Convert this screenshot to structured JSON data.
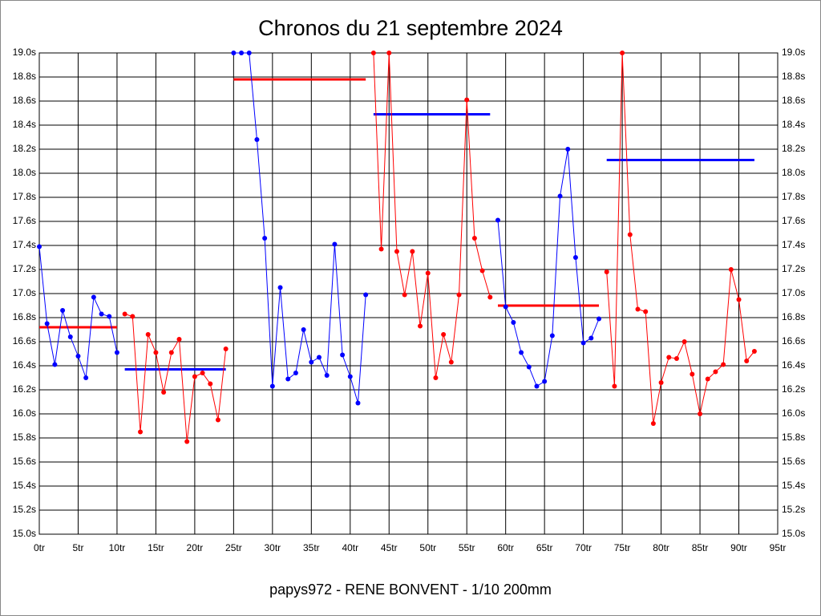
{
  "chart_data": {
    "type": "line",
    "title": "Chronos du 21 septembre 2024",
    "xlabel": "papys972 - RENE BONVENT - 1/10 200mm",
    "xlim": [
      0,
      95
    ],
    "xticks": [
      {
        "value": 0,
        "label": "0tr"
      },
      {
        "value": 5,
        "label": "5tr"
      },
      {
        "value": 10,
        "label": "10tr"
      },
      {
        "value": 15,
        "label": "15tr"
      },
      {
        "value": 20,
        "label": "20tr"
      },
      {
        "value": 25,
        "label": "25tr"
      },
      {
        "value": 30,
        "label": "30tr"
      },
      {
        "value": 35,
        "label": "35tr"
      },
      {
        "value": 40,
        "label": "40tr"
      },
      {
        "value": 45,
        "label": "45tr"
      },
      {
        "value": 50,
        "label": "50tr"
      },
      {
        "value": 55,
        "label": "55tr"
      },
      {
        "value": 60,
        "label": "60tr"
      },
      {
        "value": 65,
        "label": "65tr"
      },
      {
        "value": 70,
        "label": "70tr"
      },
      {
        "value": 75,
        "label": "75tr"
      },
      {
        "value": 80,
        "label": "80tr"
      },
      {
        "value": 85,
        "label": "85tr"
      },
      {
        "value": 90,
        "label": "90tr"
      },
      {
        "value": 95,
        "label": "95tr"
      }
    ],
    "ylim": [
      15,
      19
    ],
    "yticks": [
      {
        "value": 15,
        "label": "15.0s"
      },
      {
        "value": 15.2,
        "label": "15.2s"
      },
      {
        "value": 15.4,
        "label": "15.4s"
      },
      {
        "value": 15.6,
        "label": "15.6s"
      },
      {
        "value": 15.8,
        "label": "15.8s"
      },
      {
        "value": 16,
        "label": "16.0s"
      },
      {
        "value": 16.2,
        "label": "16.2s"
      },
      {
        "value": 16.4,
        "label": "16.4s"
      },
      {
        "value": 16.6,
        "label": "16.6s"
      },
      {
        "value": 16.8,
        "label": "16.8s"
      },
      {
        "value": 17,
        "label": "17.0s"
      },
      {
        "value": 17.2,
        "label": "17.2s"
      },
      {
        "value": 17.4,
        "label": "17.4s"
      },
      {
        "value": 17.6,
        "label": "17.6s"
      },
      {
        "value": 17.8,
        "label": "17.8s"
      },
      {
        "value": 18,
        "label": "18.0s"
      },
      {
        "value": 18.2,
        "label": "18.2s"
      },
      {
        "value": 18.4,
        "label": "18.4s"
      },
      {
        "value": 18.6,
        "label": "18.6s"
      },
      {
        "value": 18.8,
        "label": "18.8s"
      },
      {
        "value": 19,
        "label": "19.0s"
      }
    ],
    "grid": true,
    "series": [
      {
        "color": "#0000ff",
        "x": [
          0,
          1,
          2,
          3,
          4,
          5,
          6,
          7,
          8,
          9,
          10
        ],
        "values": [
          17.39,
          16.75,
          16.41,
          16.86,
          16.64,
          16.48,
          16.3,
          16.97,
          16.83,
          16.81,
          16.51
        ]
      },
      {
        "color": "#ff0000",
        "x": [
          11,
          12,
          13,
          14,
          15,
          16,
          17,
          18,
          19,
          20,
          21,
          22,
          23,
          24
        ],
        "values": [
          16.83,
          16.81,
          15.85,
          16.66,
          16.51,
          16.18,
          16.51,
          16.62,
          15.77,
          16.31,
          16.34,
          16.25,
          15.95,
          16.54
        ]
      },
      {
        "color": "#0000ff",
        "x": [
          25,
          26,
          27,
          28,
          29,
          30,
          31,
          32,
          33,
          34,
          35,
          36,
          37,
          38,
          39,
          40,
          41,
          42
        ],
        "values": [
          19,
          19,
          19,
          18.28,
          17.46,
          16.23,
          17.05,
          16.29,
          16.34,
          16.7,
          16.43,
          16.47,
          16.32,
          17.41,
          16.49,
          16.31,
          16.09,
          16.99
        ]
      },
      {
        "color": "#ff0000",
        "x": [
          43,
          44,
          45,
          46,
          47,
          48,
          49,
          50,
          51,
          52,
          53,
          54,
          55,
          56,
          57,
          58
        ],
        "values": [
          19,
          17.37,
          19,
          17.35,
          16.99,
          17.35,
          16.73,
          17.17,
          16.3,
          16.66,
          16.43,
          16.99,
          18.61,
          17.46,
          17.19,
          16.97
        ]
      },
      {
        "color": "#0000ff",
        "x": [
          59,
          60,
          61,
          62,
          63,
          64,
          65,
          66,
          67,
          68,
          69,
          70,
          71,
          72
        ],
        "values": [
          17.61,
          16.89,
          16.76,
          16.51,
          16.39,
          16.23,
          16.27,
          16.65,
          17.81,
          18.2,
          17.3,
          16.59,
          16.63,
          16.79
        ]
      },
      {
        "color": "#ff0000",
        "x": [
          73,
          74,
          75,
          76,
          77,
          78,
          79,
          80,
          81,
          82,
          83,
          84,
          85,
          86,
          87,
          88,
          89,
          90,
          91,
          92
        ],
        "values": [
          17.18,
          16.23,
          19,
          17.49,
          16.87,
          16.85,
          15.92,
          16.26,
          16.47,
          16.46,
          16.6,
          16.33,
          16,
          16.29,
          16.35,
          16.41,
          17.2,
          16.95,
          16.44,
          16.52
        ]
      }
    ],
    "averages": [
      {
        "color": "#ff0000",
        "x": [
          0,
          10
        ],
        "value": 16.72
      },
      {
        "color": "#0000ff",
        "x": [
          11,
          24
        ],
        "value": 16.37
      },
      {
        "color": "#ff0000",
        "x": [
          25,
          42
        ],
        "value": 18.78
      },
      {
        "color": "#0000ff",
        "x": [
          43,
          58
        ],
        "value": 18.49
      },
      {
        "color": "#ff0000",
        "x": [
          59,
          72
        ],
        "value": 16.9
      },
      {
        "color": "#0000ff",
        "x": [
          73,
          92
        ],
        "value": 18.11
      }
    ]
  }
}
